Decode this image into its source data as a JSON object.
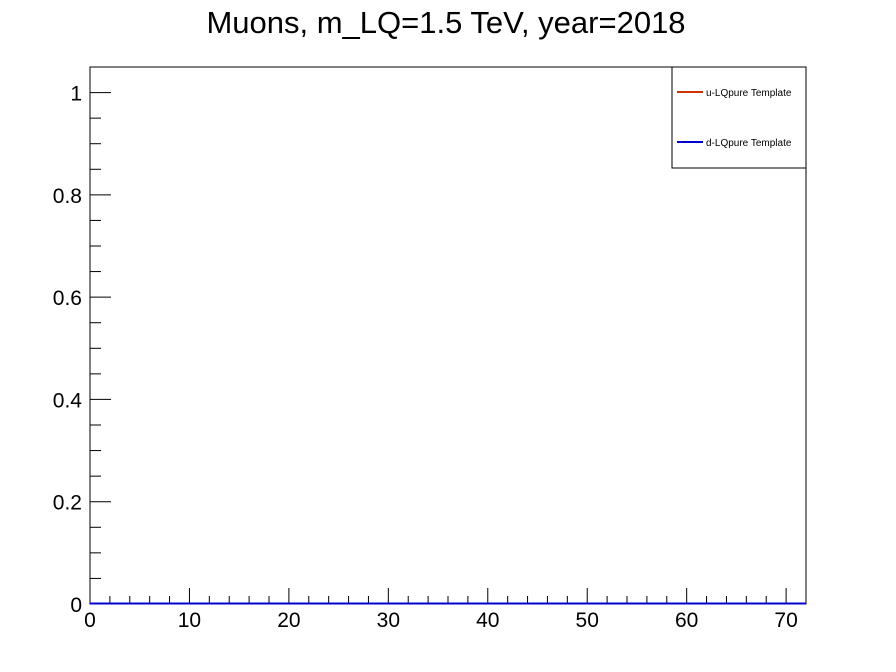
{
  "chart_data": {
    "type": "line",
    "title": "Muons, m_LQ=1.5 TeV, year=2018",
    "xlabel": "",
    "ylabel": "",
    "xlim": [
      0,
      72
    ],
    "ylim": [
      0,
      1.05
    ],
    "x_ticks": [
      0,
      10,
      20,
      30,
      40,
      50,
      60,
      70
    ],
    "x_tick_labels": [
      "0",
      "10",
      "20",
      "30",
      "40",
      "50",
      "60",
      "70"
    ],
    "y_ticks": [
      0,
      0.2,
      0.4,
      0.6,
      0.8,
      1
    ],
    "y_tick_labels": [
      "0",
      "0.2",
      "0.4",
      "0.6",
      "0.8",
      "1"
    ],
    "grid": false,
    "legend_position": "top-right",
    "series": [
      {
        "name": "u-LQpure Template",
        "color": "#cc3300",
        "x": [
          0,
          72
        ],
        "y": [
          0,
          0
        ]
      },
      {
        "name": "d-LQpure Template",
        "color": "#0000cc",
        "x": [
          0,
          72
        ],
        "y": [
          0,
          0
        ]
      }
    ]
  }
}
